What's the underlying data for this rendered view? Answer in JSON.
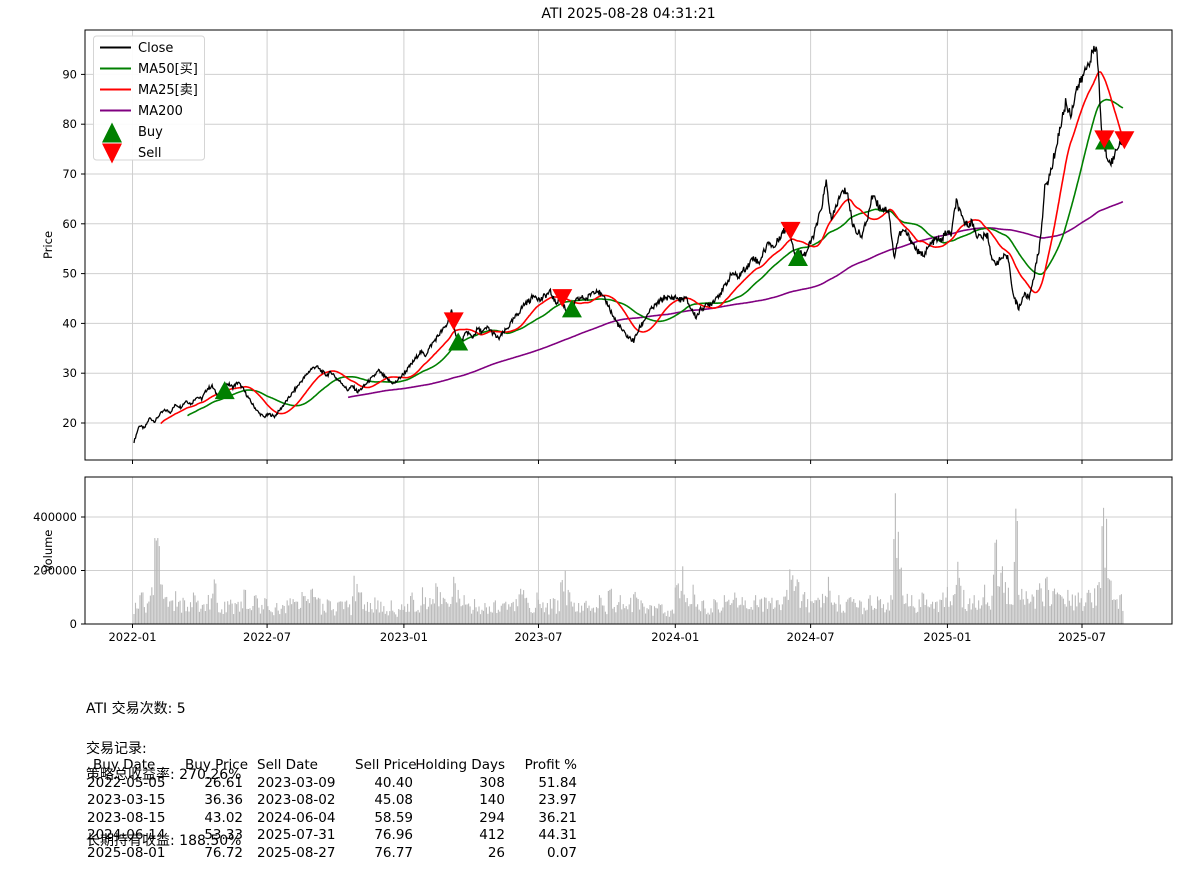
{
  "title": "ATI 2025-08-28 04:31:21",
  "price_panel": {
    "ylabel": "Price",
    "yticks": [
      20,
      30,
      40,
      50,
      60,
      70,
      80,
      90
    ]
  },
  "volume_panel": {
    "ylabel": "Volume",
    "yticks": [
      0,
      200000,
      400000
    ],
    "ytick_labels": [
      "0",
      "200000",
      "400000"
    ]
  },
  "x_axis": {
    "ticks": [
      {
        "date": "2022-01-01",
        "label": "2022-01"
      },
      {
        "date": "2022-07-01",
        "label": "2022-07"
      },
      {
        "date": "2023-01-01",
        "label": "2023-01"
      },
      {
        "date": "2023-07-01",
        "label": "2023-07"
      },
      {
        "date": "2024-01-01",
        "label": "2024-01"
      },
      {
        "date": "2024-07-01",
        "label": "2024-07"
      },
      {
        "date": "2025-01-01",
        "label": "2025-01"
      },
      {
        "date": "2025-07-01",
        "label": "2025-07"
      }
    ]
  },
  "legend": [
    {
      "label": "Close",
      "color": "#000000",
      "type": "line"
    },
    {
      "label": "MA50[买]",
      "color": "#008000",
      "type": "line"
    },
    {
      "label": "MA25[卖]",
      "color": "#ff0000",
      "type": "line"
    },
    {
      "label": "MA200",
      "color": "#800080",
      "type": "line"
    },
    {
      "label": "Buy",
      "color": "#008000",
      "type": "triangle-up"
    },
    {
      "label": "Sell",
      "color": "#ff0000",
      "type": "triangle-down"
    }
  ],
  "colors": {
    "close": "#000000",
    "ma25": "#ff0000",
    "ma50": "#008000",
    "ma200": "#800080",
    "buy_marker": "#008000",
    "sell_marker": "#ff0000",
    "grid": "#cfcfcf",
    "volume_bar": "#b9b9b9",
    "axis": "#000000",
    "legend_border": "#d5d5d5"
  },
  "chart_data": {
    "type": "line",
    "title": "ATI 2025-08-28 04:31:21",
    "x_start_date": "2022-01-03",
    "x_step_days": 7,
    "ylabel": "Price",
    "ylim": [
      12.6,
      98.9
    ],
    "grid": true,
    "legend_position": "upper-left",
    "series": [
      {
        "name": "Close",
        "color": "#000000",
        "values": [
          16.2,
          19.5,
          18.9,
          21.0,
          20.3,
          21.8,
          22.6,
          22.2,
          23.7,
          23.2,
          24.5,
          23.8,
          25.3,
          24.8,
          26.8,
          27.4,
          25.6,
          26.6,
          27.9,
          27.2,
          28.2,
          26.8,
          25.0,
          23.4,
          22.0,
          21.2,
          21.8,
          21.3,
          22.6,
          24.0,
          25.4,
          26.8,
          28.2,
          29.5,
          30.8,
          31.4,
          30.4,
          29.6,
          30.2,
          28.8,
          28.0,
          26.6,
          27.4,
          26.2,
          27.2,
          28.3,
          29.3,
          30.5,
          29.4,
          28.5,
          27.9,
          29.0,
          30.1,
          31.4,
          32.8,
          34.3,
          33.6,
          35.5,
          36.9,
          38.3,
          39.5,
          42.4,
          37.0,
          36.5,
          38.4,
          37.1,
          38.9,
          38.3,
          39.2,
          38.0,
          36.9,
          38.1,
          39.4,
          40.9,
          42.3,
          43.9,
          44.6,
          45.8,
          44.6,
          45.6,
          46.3,
          44.1,
          45.2,
          42.6,
          43.0,
          44.6,
          45.2,
          44.9,
          46.3,
          46.8,
          45.3,
          44.0,
          41.5,
          39.8,
          38.3,
          37.2,
          36.5,
          38.8,
          40.6,
          42.4,
          43.4,
          44.4,
          45.3,
          45.0,
          45.3,
          44.7,
          45.1,
          43.0,
          41.3,
          43.0,
          43.6,
          44.1,
          45.4,
          46.5,
          48.4,
          50.2,
          49.2,
          50.6,
          51.6,
          53.4,
          52.1,
          54.3,
          56.4,
          55.1,
          57.4,
          58.7,
          58.6,
          53.8,
          54.5,
          53.9,
          56.2,
          59.0,
          62.9,
          68.3,
          60.4,
          63.9,
          66.2,
          66.7,
          60.2,
          58.2,
          57.9,
          61.5,
          66.2,
          63.6,
          63.0,
          62.8,
          53.2,
          57.8,
          58.6,
          57.2,
          55.4,
          53.8,
          54.1,
          55.8,
          56.9,
          56.6,
          58.2,
          57.9,
          64.6,
          61.2,
          59.9,
          60.3,
          57.6,
          57.3,
          57.7,
          52.2,
          52.4,
          53.3,
          53.0,
          45.3,
          43.0,
          45.8,
          45.2,
          50.0,
          55.5,
          67.0,
          69.8,
          74.6,
          79.6,
          84.2,
          81.9,
          86.8,
          88.7,
          91.4,
          93.9,
          95.3,
          77.2,
          73.4,
          72.4,
          75.8,
          76.8
        ]
      }
    ],
    "moving_averages": [
      {
        "name": "MA25[卖]",
        "color": "#ff0000",
        "window_days": 25
      },
      {
        "name": "MA50[买]",
        "color": "#008000",
        "window_days": 50
      },
      {
        "name": "MA200",
        "color": "#800080",
        "window_days": 200
      }
    ],
    "volume": {
      "name": "Volume",
      "color": "#b9b9b9",
      "ylim": [
        0,
        540000
      ],
      "values": [
        80000,
        120000,
        95000,
        140000,
        430000,
        150000,
        110000,
        90000,
        130000,
        100000,
        80000,
        120000,
        90000,
        75000,
        110000,
        170000,
        95000,
        85000,
        120000,
        80000,
        100000,
        130000,
        90000,
        110000,
        75000,
        95000,
        60000,
        80000,
        70000,
        90000,
        110000,
        85000,
        120000,
        95000,
        140000,
        100000,
        80000,
        90000,
        70000,
        85000,
        95000,
        75000,
        200000,
        120000,
        90000,
        80000,
        100000,
        85000,
        70000,
        90000,
        60000,
        75000,
        100000,
        120000,
        90000,
        140000,
        110000,
        95000,
        150000,
        100000,
        120000,
        180000,
        140000,
        110000,
        85000,
        95000,
        70000,
        80000,
        65000,
        90000,
        75000,
        85000,
        110000,
        95000,
        155000,
        100000,
        85000,
        120000,
        95000,
        80000,
        105000,
        90000,
        205000,
        130000,
        95000,
        80000,
        100000,
        70000,
        90000,
        110000,
        85000,
        130000,
        95000,
        110000,
        80000,
        100000,
        120000,
        90000,
        85000,
        70000,
        95000,
        75000,
        60000,
        55000,
        160000,
        220000,
        120000,
        150000,
        100000,
        90000,
        80000,
        95000,
        85000,
        110000,
        95000,
        120000,
        100000,
        90000,
        85000,
        110000,
        95000,
        100000,
        120000,
        90000,
        110000,
        130000,
        270000,
        170000,
        120000,
        95000,
        110000,
        100000,
        120000,
        180000,
        140000,
        110000,
        95000,
        100000,
        150000,
        90000,
        85000,
        110000,
        120000,
        95000,
        100000,
        110000,
        520000,
        215000,
        130000,
        110000,
        95000,
        120000,
        90000,
        85000,
        100000,
        120000,
        140000,
        110000,
        230000,
        130000,
        100000,
        110000,
        95000,
        150000,
        125000,
        310000,
        270000,
        160000,
        145000,
        440000,
        150000,
        125000,
        110000,
        130000,
        150000,
        180000,
        140000,
        120000,
        150000,
        130000,
        110000,
        120000,
        100000,
        130000,
        140000,
        160000,
        470000,
        170000,
        120000,
        110000,
        90000
      ]
    }
  },
  "stats": {
    "line1": "ATI 交易次数: 5",
    "line2": "策略总收益率: 270.26%",
    "line3": "长期持有收益: 188.50%"
  },
  "trades": {
    "heading": "交易记录:",
    "columns": [
      "Buy Date",
      "Buy Price",
      "Sell Date",
      "Sell Price",
      "Holding Days",
      "Profit %"
    ],
    "rows": [
      [
        "2022-05-05",
        "26.61",
        "2023-03-09",
        "40.40",
        "308",
        "51.84"
      ],
      [
        "2023-03-15",
        "36.36",
        "2023-08-02",
        "45.08",
        "140",
        "23.97"
      ],
      [
        "2023-08-15",
        "43.02",
        "2024-06-04",
        "58.59",
        "294",
        "36.21"
      ],
      [
        "2024-06-14",
        "53.33",
        "2025-07-31",
        "76.96",
        "412",
        "44.31"
      ],
      [
        "2025-08-01",
        "76.72",
        "2025-08-27",
        "76.77",
        "26",
        "0.07"
      ]
    ]
  }
}
